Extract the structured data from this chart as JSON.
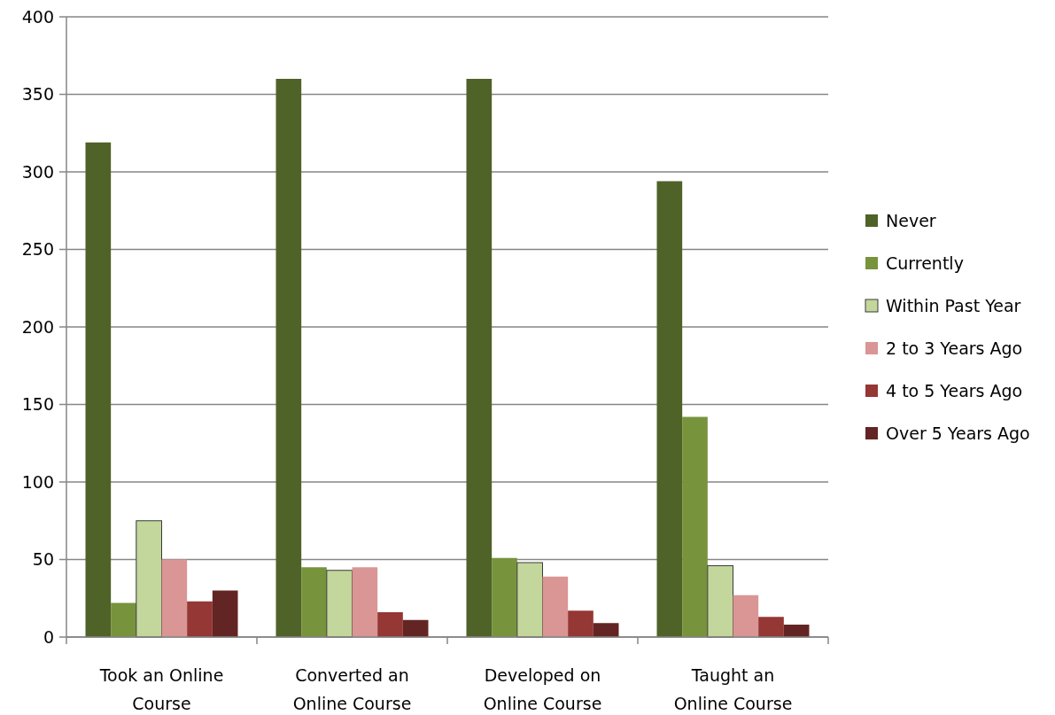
{
  "chart_data": {
    "type": "bar",
    "categories": [
      "Took an Online Course",
      "Converted an Online Course",
      "Developed on Online Course",
      "Taught an Online Course"
    ],
    "series": [
      {
        "name": "Never",
        "color": "#4f6228",
        "values": [
          319,
          360,
          360,
          294
        ]
      },
      {
        "name": "Currently",
        "color": "#77933c",
        "values": [
          22,
          45,
          51,
          142
        ]
      },
      {
        "name": "Within Past Year",
        "color": "#c3d69b",
        "values": [
          75,
          43,
          48,
          46
        ]
      },
      {
        "name": "2 to 3 Years Ago",
        "color": "#d99694",
        "values": [
          50,
          45,
          39,
          27
        ]
      },
      {
        "name": "4 to 5 Years Ago",
        "color": "#953735",
        "values": [
          23,
          16,
          17,
          13
        ]
      },
      {
        "name": "Over 5 Years Ago",
        "color": "#632523",
        "values": [
          30,
          11,
          9,
          8
        ]
      }
    ],
    "ylim": [
      0,
      400
    ],
    "yticks": [
      0,
      50,
      100,
      150,
      200,
      250,
      300,
      350,
      400
    ],
    "grid": "y",
    "legend": "right"
  }
}
